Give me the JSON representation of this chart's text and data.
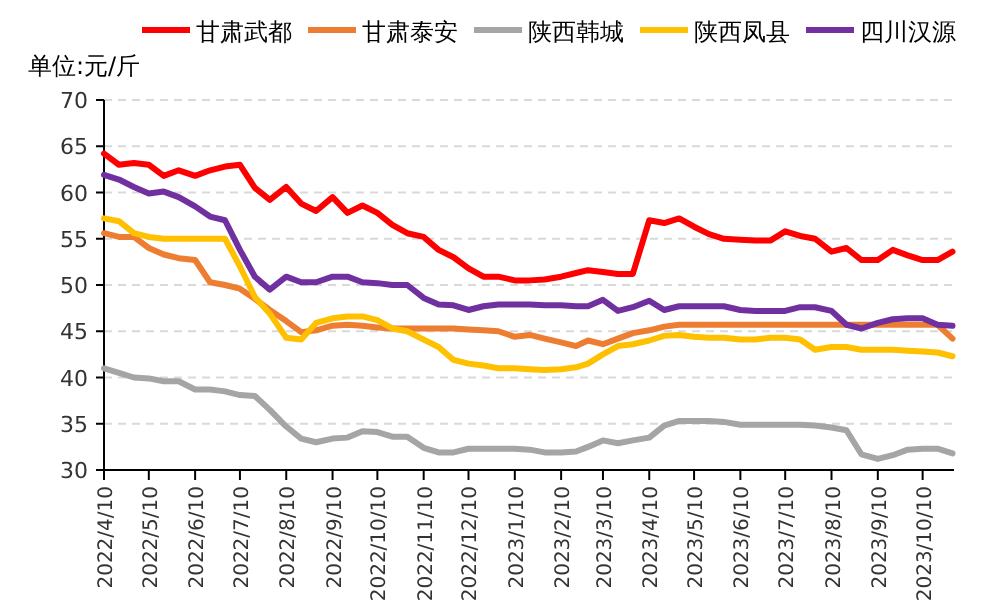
{
  "chart_data": {
    "type": "line",
    "ylabel": "单位:元/斤",
    "legend": "top",
    "grid": "y",
    "x": [
      "2022-04-10",
      "2022-04-20",
      "2022-04-30",
      "2022-05-10",
      "2022-05-20",
      "2022-05-30",
      "2022-06-10",
      "2022-06-20",
      "2022-06-30",
      "2022-07-10",
      "2022-07-20",
      "2022-07-30",
      "2022-08-10",
      "2022-08-20",
      "2022-08-30",
      "2022-09-10",
      "2022-09-20",
      "2022-09-30",
      "2022-10-10",
      "2022-10-20",
      "2022-10-30",
      "2022-11-10",
      "2022-11-20",
      "2022-11-30",
      "2022-12-10",
      "2022-12-20",
      "2022-12-30",
      "2023-01-10",
      "2023-01-20",
      "2023-01-30",
      "2023-02-10",
      "2023-02-20",
      "2023-02-28",
      "2023-03-10",
      "2023-03-20",
      "2023-03-30",
      "2023-04-10",
      "2023-04-20",
      "2023-04-30",
      "2023-05-10",
      "2023-05-20",
      "2023-05-30",
      "2023-06-10",
      "2023-06-20",
      "2023-06-30",
      "2023-07-10",
      "2023-07-20",
      "2023-07-30",
      "2023-08-10",
      "2023-08-20",
      "2023-08-30",
      "2023-09-10",
      "2023-09-20",
      "2023-09-30",
      "2023-10-10",
      "2023-10-20",
      "2023-10-30"
    ],
    "xlim": [
      "2022-04-10",
      "2023-10-31"
    ],
    "xticks": [
      {
        "value": "2022-04-10",
        "label": "2022/4/10"
      },
      {
        "value": "2022-05-10",
        "label": "2022/5/10"
      },
      {
        "value": "2022-06-10",
        "label": "2022/6/10"
      },
      {
        "value": "2022-07-10",
        "label": "2022/7/10"
      },
      {
        "value": "2022-08-10",
        "label": "2022/8/10"
      },
      {
        "value": "2022-09-10",
        "label": "2022/9/10"
      },
      {
        "value": "2022-10-10",
        "label": "2022/10/10"
      },
      {
        "value": "2022-11-10",
        "label": "2022/11/10"
      },
      {
        "value": "2022-12-10",
        "label": "2022/12/10"
      },
      {
        "value": "2023-01-10",
        "label": "2023/1/10"
      },
      {
        "value": "2023-02-10",
        "label": "2023/2/10"
      },
      {
        "value": "2023-03-10",
        "label": "2023/3/10"
      },
      {
        "value": "2023-04-10",
        "label": "2023/4/10"
      },
      {
        "value": "2023-05-10",
        "label": "2023/5/10"
      },
      {
        "value": "2023-06-10",
        "label": "2023/6/10"
      },
      {
        "value": "2023-07-10",
        "label": "2023/7/10"
      },
      {
        "value": "2023-08-10",
        "label": "2023/8/10"
      },
      {
        "value": "2023-09-10",
        "label": "2023/9/10"
      },
      {
        "value": "2023-10-10",
        "label": "2023/10/10"
      }
    ],
    "ylim": [
      30,
      70
    ],
    "yticks": [
      30,
      35,
      40,
      45,
      50,
      55,
      60,
      65,
      70
    ],
    "series": [
      {
        "name": "甘肃武都",
        "color": "#ff0000",
        "values": [
          64.2,
          63.0,
          63.2,
          63.0,
          61.8,
          62.4,
          61.8,
          62.4,
          62.8,
          63.0,
          60.5,
          59.2,
          60.6,
          58.8,
          58.0,
          59.5,
          57.8,
          58.6,
          57.8,
          56.5,
          55.6,
          55.2,
          53.8,
          53.0,
          51.8,
          50.9,
          50.9,
          50.5,
          50.5,
          50.6,
          50.9,
          51.3,
          51.6,
          51.4,
          51.2,
          51.2,
          57.0,
          56.7,
          57.2,
          56.3,
          55.5,
          55.0,
          54.9,
          54.8,
          54.8,
          55.8,
          55.3,
          55.0,
          53.6,
          54.0,
          52.7,
          52.7,
          53.8,
          53.2,
          52.7,
          52.7,
          53.6
        ]
      },
      {
        "name": "甘肃泰安",
        "color": "#ed7d31",
        "values": [
          55.6,
          55.2,
          55.2,
          54.0,
          53.3,
          52.9,
          52.7,
          50.3,
          50.0,
          49.6,
          48.5,
          47.3,
          46.1,
          44.9,
          45.1,
          45.6,
          45.7,
          45.6,
          45.4,
          45.3,
          45.3,
          45.3,
          45.3,
          45.3,
          45.2,
          45.1,
          45.0,
          44.4,
          44.6,
          44.2,
          43.8,
          43.4,
          44.0,
          43.6,
          44.2,
          44.8,
          45.1,
          45.5,
          45.7,
          45.7,
          45.7,
          45.7,
          45.7,
          45.7,
          45.7,
          45.7,
          45.7,
          45.7,
          45.7,
          45.7,
          45.7,
          45.7,
          45.7,
          45.7,
          45.7,
          45.7,
          44.2
        ]
      },
      {
        "name": "陕西韩城",
        "color": "#a5a5a5",
        "values": [
          41.0,
          40.5,
          40.0,
          39.9,
          39.6,
          39.6,
          38.7,
          38.7,
          38.5,
          38.1,
          38.0,
          36.5,
          34.7,
          33.4,
          33.0,
          33.4,
          33.5,
          34.2,
          34.1,
          33.6,
          33.6,
          32.4,
          31.9,
          31.9,
          32.3,
          32.3,
          32.3,
          32.3,
          32.2,
          31.9,
          31.9,
          32.0,
          32.5,
          33.2,
          32.9,
          33.2,
          33.5,
          34.8,
          35.3,
          35.3,
          35.3,
          35.2,
          34.9,
          34.9,
          34.9,
          34.9,
          34.9,
          34.8,
          34.6,
          34.3,
          31.7,
          31.2,
          31.6,
          32.2,
          32.3,
          32.3,
          31.8
        ]
      },
      {
        "name": "陕西凤县",
        "color": "#ffc000",
        "values": [
          57.2,
          56.9,
          55.6,
          55.2,
          55.0,
          55.0,
          55.0,
          55.0,
          55.0,
          52.0,
          48.7,
          46.9,
          44.3,
          44.1,
          45.9,
          46.4,
          46.6,
          46.6,
          46.2,
          45.3,
          45.0,
          44.1,
          43.3,
          41.9,
          41.5,
          41.3,
          41.0,
          41.0,
          40.9,
          40.8,
          40.9,
          41.1,
          41.5,
          42.5,
          43.4,
          43.6,
          44.0,
          44.5,
          44.6,
          44.4,
          44.3,
          44.3,
          44.1,
          44.1,
          44.3,
          44.3,
          44.1,
          43.0,
          43.3,
          43.3,
          43.0,
          43.0,
          43.0,
          42.9,
          42.8,
          42.7,
          42.3
        ]
      },
      {
        "name": "四川汉源",
        "color": "#7030a0",
        "values": [
          61.9,
          61.4,
          60.6,
          59.9,
          60.1,
          59.5,
          58.5,
          57.4,
          57.0,
          53.8,
          50.9,
          49.5,
          50.9,
          50.3,
          50.3,
          50.9,
          50.9,
          50.3,
          50.2,
          50.0,
          50.0,
          48.6,
          47.9,
          47.8,
          47.3,
          47.7,
          47.9,
          47.9,
          47.9,
          47.8,
          47.8,
          47.7,
          47.7,
          48.4,
          47.2,
          47.6,
          48.3,
          47.3,
          47.7,
          47.7,
          47.7,
          47.7,
          47.3,
          47.2,
          47.2,
          47.2,
          47.6,
          47.6,
          47.2,
          45.7,
          45.3,
          45.9,
          46.3,
          46.4,
          46.4,
          45.7,
          45.6
        ]
      }
    ]
  }
}
